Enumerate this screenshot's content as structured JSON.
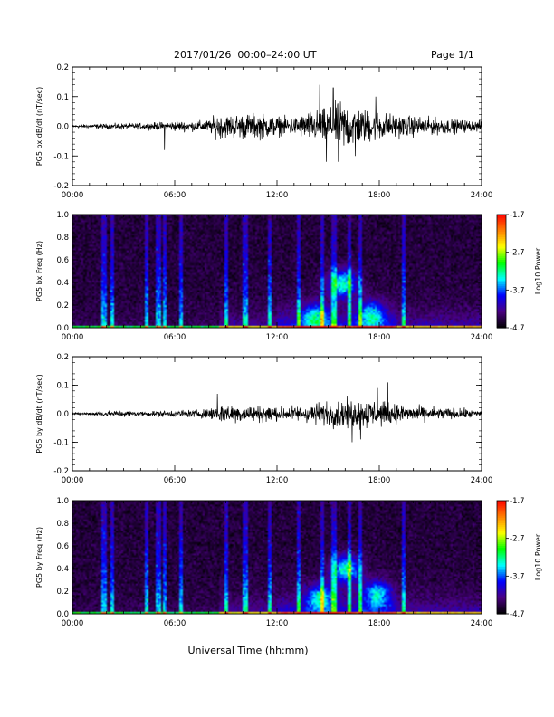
{
  "header": {
    "title": "2017/01/26  00:00–24:00 UT",
    "page": "Page 1/1"
  },
  "colorbar": {
    "label": "Log10 Power",
    "ticks": [
      "-1.7",
      "-2.7",
      "-3.7",
      "-4.7"
    ],
    "range": [
      -4.7,
      -1.7
    ],
    "colormap": [
      "#000000",
      "#4b0082",
      "#0000ff",
      "#00ffff",
      "#00ff00",
      "#ffff00",
      "#ff8000",
      "#ff0000"
    ]
  },
  "chart_data": [
    {
      "type": "line",
      "ylabel": "PG5 bx dB/dt (nT/sec)",
      "ylim": [
        -0.2,
        0.2
      ],
      "yticks": [
        "0.2",
        "0.1",
        "0.0",
        "-0.1",
        "-0.2"
      ],
      "xlim": [
        "00:00",
        "24:00"
      ],
      "xticks": [
        "00:00",
        "06:00",
        "12:00",
        "18:00",
        "24:00"
      ],
      "grid": false,
      "series": [
        {
          "hours": [
            0,
            1,
            2,
            3,
            4,
            5,
            6,
            7,
            8,
            8.5,
            9,
            10,
            11,
            12,
            13,
            14,
            15,
            15.5,
            16,
            16.5,
            17,
            17.5,
            18,
            19,
            20,
            21,
            22,
            23,
            24
          ],
          "amplitude": [
            0.006,
            0.008,
            0.01,
            0.012,
            0.012,
            0.015,
            0.02,
            0.02,
            0.025,
            0.05,
            0.045,
            0.05,
            0.05,
            0.04,
            0.035,
            0.06,
            0.07,
            0.09,
            0.1,
            0.08,
            0.07,
            0.065,
            0.06,
            0.045,
            0.04,
            0.035,
            0.03,
            0.025,
            0.02
          ],
          "peaks": [
            {
              "hour": 5.4,
              "value": -0.08
            },
            {
              "hour": 14.5,
              "value": 0.14
            },
            {
              "hour": 14.9,
              "value": -0.12
            },
            {
              "hour": 15.3,
              "value": 0.13
            },
            {
              "hour": 15.6,
              "value": -0.12
            },
            {
              "hour": 16.6,
              "value": -0.1
            },
            {
              "hour": 17.8,
              "value": 0.1
            }
          ]
        }
      ]
    },
    {
      "type": "heatmap",
      "ylabel": "PG5 bx Freq (Hz)",
      "ylim": [
        0,
        1
      ],
      "yticks": [
        "1.0",
        "0.8",
        "0.6",
        "0.4",
        "0.2",
        "0.0"
      ],
      "xlim": [
        "00:00",
        "24:00"
      ],
      "xticks": [
        "00:00",
        "06:00",
        "12:00",
        "18:00",
        "24:00"
      ],
      "background_log_power": -4.5,
      "burst_hours": [
        1.8,
        2.3,
        4.3,
        5.0,
        5.4,
        6.3,
        9.0,
        10.1,
        11.5,
        13.2,
        14.6,
        15.3,
        16.2,
        16.8,
        19.4
      ],
      "blobs": [
        {
          "hour": 15.8,
          "freq": 0.4,
          "log_power": -2.8
        },
        {
          "hour": 14.2,
          "freq": 0.1,
          "log_power": -3.0
        },
        {
          "hour": 17.5,
          "freq": 0.12,
          "log_power": -3.1
        }
      ]
    },
    {
      "type": "line",
      "ylabel": "PG5 by dB/dt (nT/sec)",
      "ylim": [
        -0.2,
        0.2
      ],
      "yticks": [
        "0.2",
        "0.1",
        "0.0",
        "-0.1",
        "-0.2"
      ],
      "xlim": [
        "00:00",
        "24:00"
      ],
      "xticks": [
        "00:00",
        "06:00",
        "12:00",
        "18:00",
        "24:00"
      ],
      "grid": false,
      "series": [
        {
          "hours": [
            0,
            1,
            2,
            3,
            4,
            5,
            6,
            7,
            8,
            8.5,
            9,
            10,
            11,
            12,
            13,
            14,
            15,
            15.5,
            16,
            16.5,
            17,
            17.5,
            18,
            19,
            20,
            21,
            22,
            23,
            24
          ],
          "amplitude": [
            0.004,
            0.006,
            0.012,
            0.012,
            0.01,
            0.012,
            0.014,
            0.016,
            0.02,
            0.04,
            0.04,
            0.035,
            0.035,
            0.03,
            0.03,
            0.04,
            0.05,
            0.055,
            0.06,
            0.055,
            0.06,
            0.06,
            0.05,
            0.04,
            0.03,
            0.028,
            0.024,
            0.02,
            0.015
          ],
          "peaks": [
            {
              "hour": 8.5,
              "value": 0.07
            },
            {
              "hour": 16.4,
              "value": -0.1
            },
            {
              "hour": 18.5,
              "value": 0.11
            },
            {
              "hour": 17.9,
              "value": 0.09
            },
            {
              "hour": 16.9,
              "value": -0.09
            }
          ]
        }
      ]
    },
    {
      "type": "heatmap",
      "ylabel": "PG5 by Freq (Hz)",
      "ylim": [
        0,
        1
      ],
      "yticks": [
        "1.0",
        "0.8",
        "0.6",
        "0.4",
        "0.2",
        "0.0"
      ],
      "xlim": [
        "00:00",
        "24:00"
      ],
      "xticks": [
        "00:00",
        "06:00",
        "12:00",
        "18:00",
        "24:00"
      ],
      "background_log_power": -4.5,
      "burst_hours": [
        1.8,
        2.3,
        4.3,
        5.0,
        5.4,
        6.3,
        9.0,
        10.1,
        11.5,
        13.2,
        14.6,
        15.3,
        16.2,
        16.8,
        19.4
      ],
      "blobs": [
        {
          "hour": 16.0,
          "freq": 0.4,
          "log_power": -2.8
        },
        {
          "hour": 14.5,
          "freq": 0.15,
          "log_power": -3.0
        },
        {
          "hour": 17.8,
          "freq": 0.18,
          "log_power": -3.0
        }
      ]
    }
  ],
  "xlabel": "Universal Time (hh:mm)"
}
